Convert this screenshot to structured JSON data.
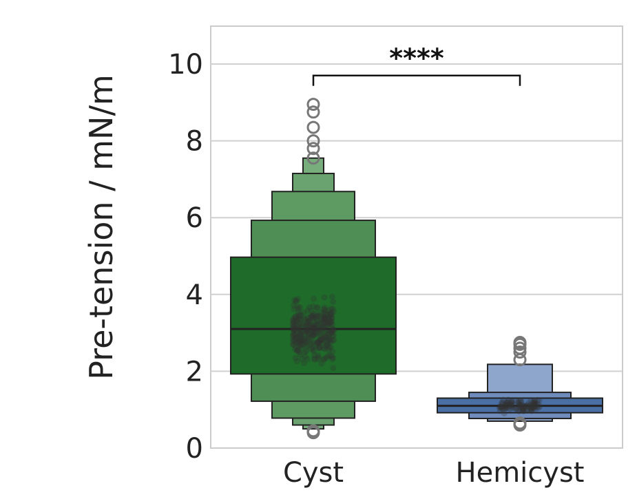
{
  "chart_data": {
    "type": "boxen",
    "ylabel": "Pre-tension  /  mN/m",
    "ylim": [
      0,
      11
    ],
    "yticks": [
      "0",
      "2",
      "4",
      "6",
      "8",
      "10"
    ],
    "grid": true,
    "categories": [
      "Cyst",
      "Hemicyst"
    ],
    "series": [
      {
        "category": "Cyst",
        "color": "#1f6b2a",
        "median": 3.1,
        "boxes": [
          [
            1.93,
            4.97
          ],
          [
            1.22,
            5.93
          ],
          [
            0.78,
            6.68
          ],
          [
            0.6,
            7.15
          ],
          [
            0.5,
            7.55
          ]
        ],
        "outliers": [
          0.4,
          0.45,
          7.55,
          7.8,
          8.0,
          8.35,
          8.75,
          8.95
        ]
      },
      {
        "category": "Hemicyst",
        "color": "#4a6fa5",
        "median": 1.1,
        "boxes": [
          [
            0.92,
            1.3
          ],
          [
            0.77,
            1.45
          ],
          [
            0.7,
            2.18
          ]
        ],
        "outliers": [
          0.6,
          0.65,
          2.3,
          2.5,
          2.6,
          2.7,
          2.75
        ]
      }
    ],
    "annotation": {
      "text": "****",
      "from": "Cyst",
      "to": "Hemicyst",
      "y": 9.7
    }
  }
}
